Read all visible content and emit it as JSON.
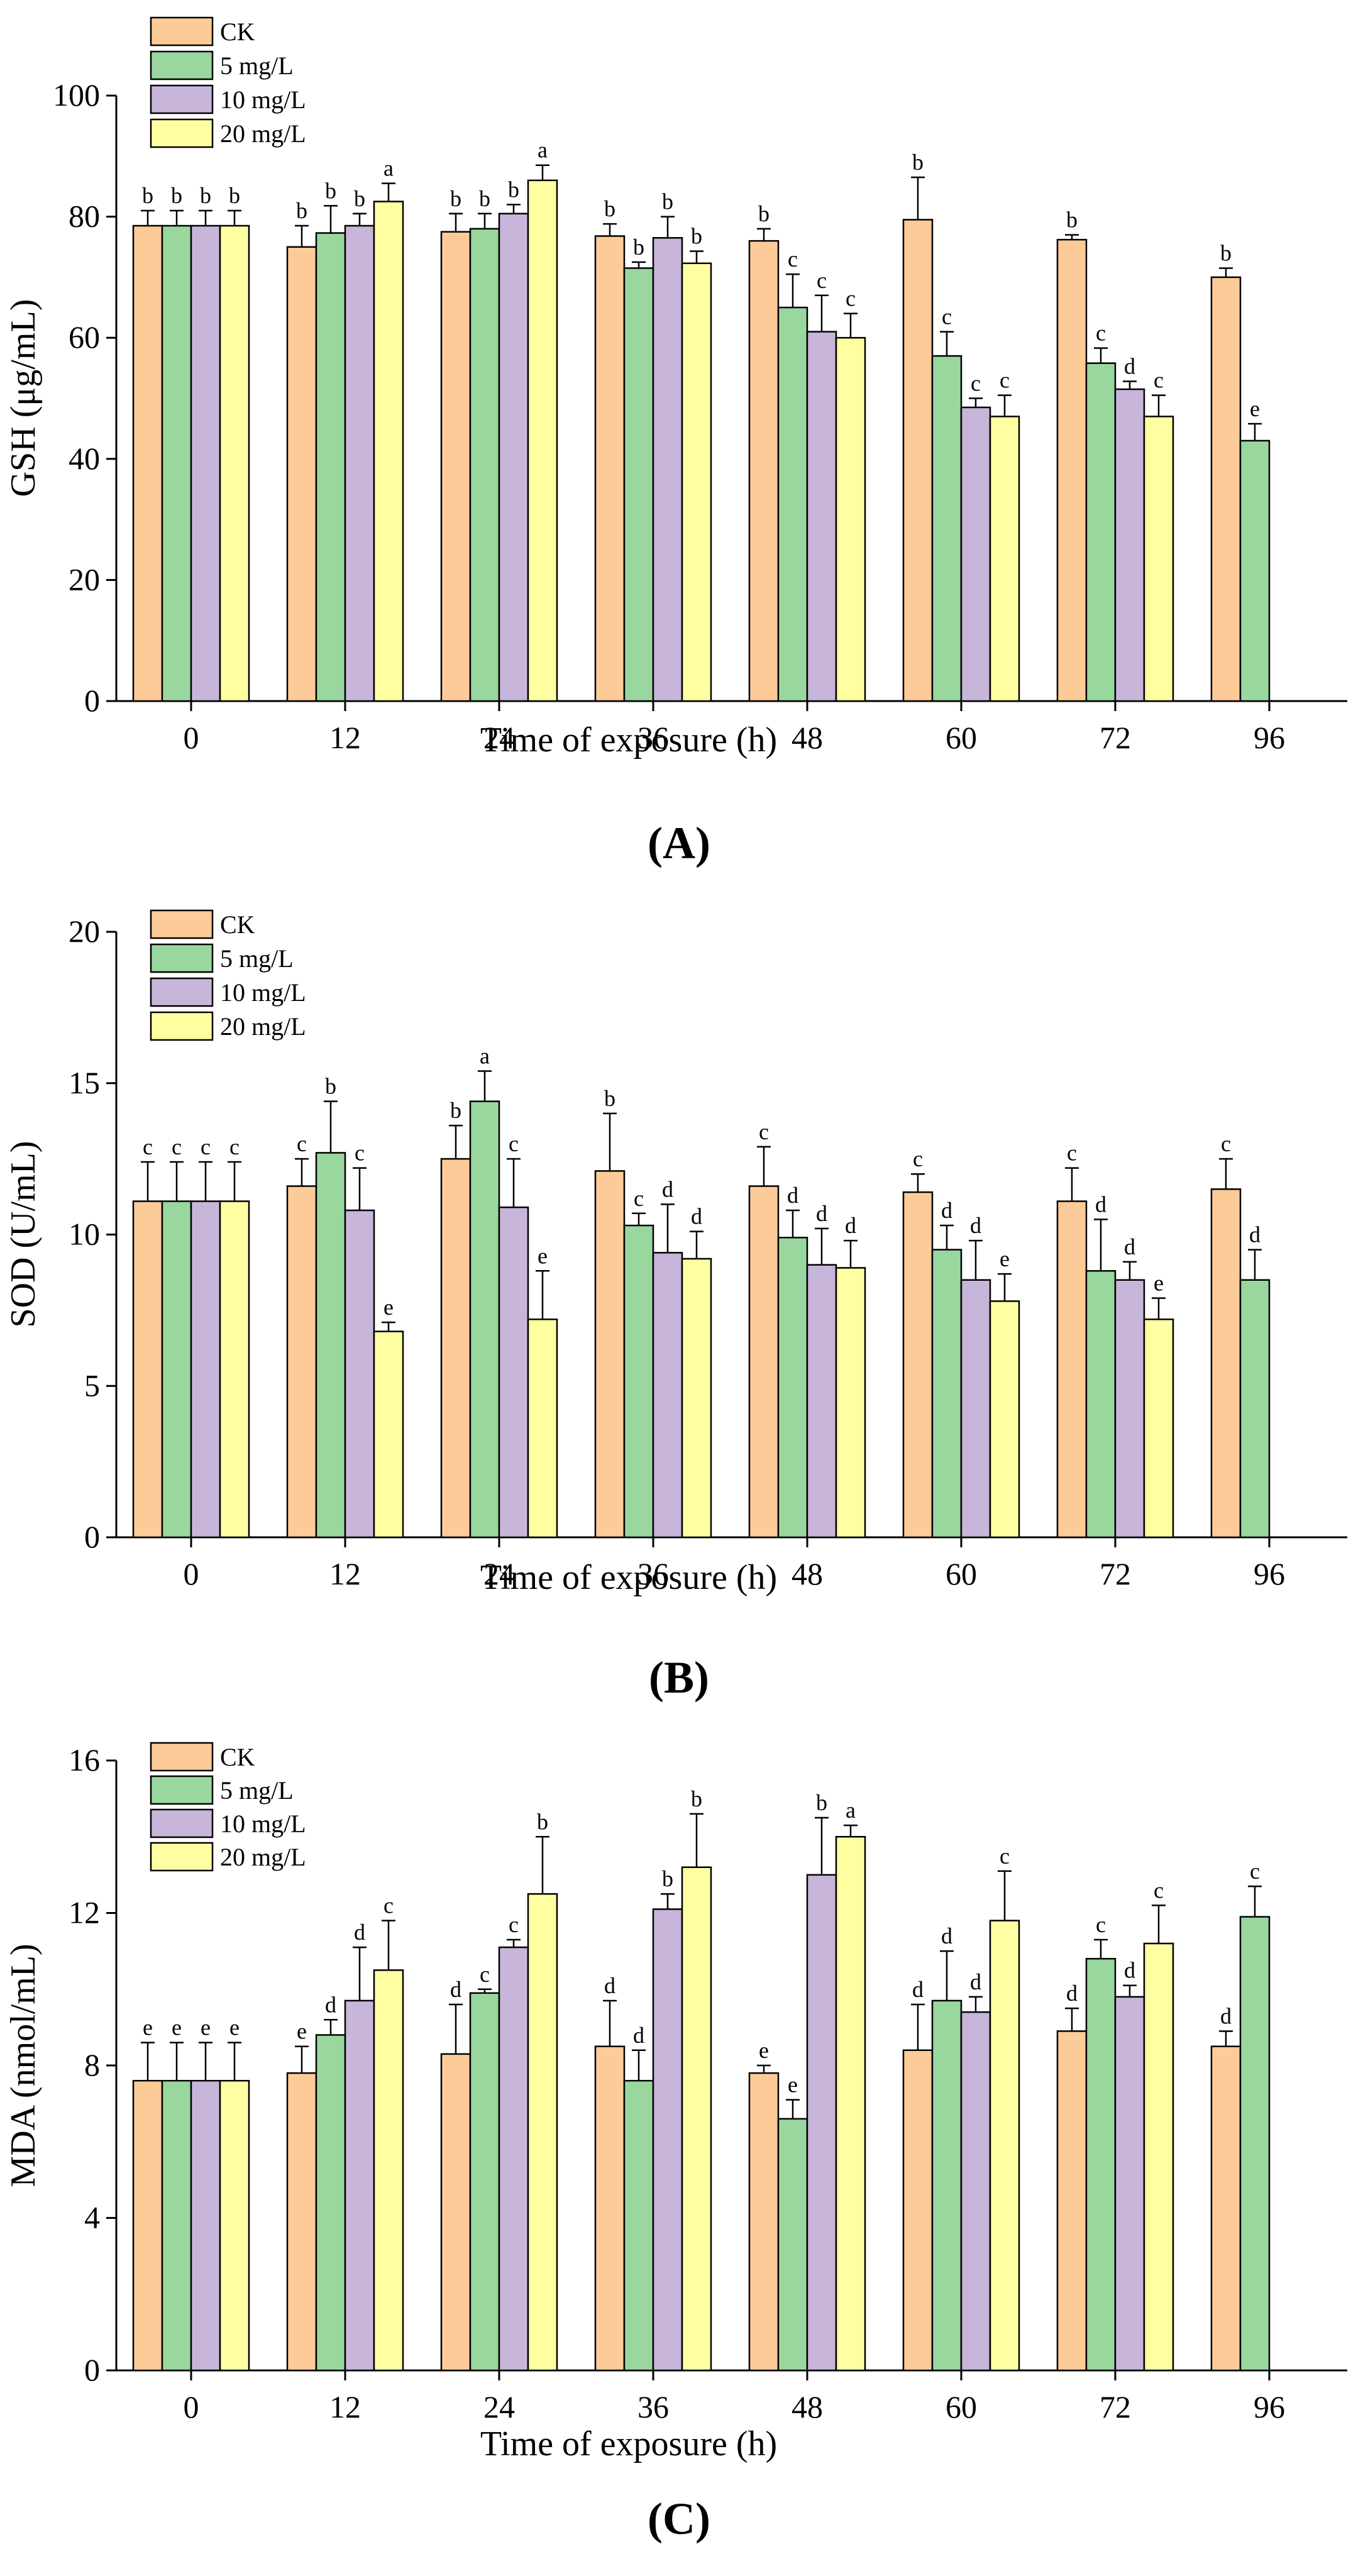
{
  "colors": {
    "CK": "#FDCB98",
    "5 mg/L": "#99D79F",
    "10 mg/L": "#C8B5DA",
    "20 mg/L": "#FFFEA1",
    "axis": "#000000"
  },
  "chart_data": [
    {
      "type": "bar",
      "panel_label": "(A)",
      "xlabel": "Time of exposure (h)",
      "ylabel": "GSH (μg/mL)",
      "ylim": [
        0,
        100
      ],
      "yticks": [
        0,
        20,
        40,
        60,
        80,
        100
      ],
      "categories": [
        "0",
        "12",
        "24",
        "36",
        "48",
        "60",
        "72",
        "96"
      ],
      "legend": {
        "entries": [
          "CK",
          "5 mg/L",
          "10 mg/L",
          "20 mg/L"
        ],
        "position": "top-left"
      },
      "grid": false,
      "series": [
        {
          "name": "CK",
          "values": [
            78.5,
            75.0,
            77.5,
            76.8,
            76.0,
            79.5,
            76.2,
            70.0
          ],
          "errors": [
            2.5,
            3.5,
            3.0,
            2.0,
            2.0,
            7.0,
            0.8,
            1.5
          ],
          "letters": [
            "b",
            "b",
            "b",
            "b",
            "b",
            "b",
            "b",
            "b"
          ]
        },
        {
          "name": "5 mg/L",
          "values": [
            78.5,
            77.3,
            78.0,
            71.5,
            65.0,
            57.0,
            55.8,
            43.0
          ],
          "errors": [
            2.5,
            4.5,
            2.5,
            1.0,
            5.5,
            4.0,
            2.5,
            2.8
          ],
          "letters": [
            "b",
            "b",
            "b",
            "b",
            "c",
            "c",
            "c",
            "e"
          ]
        },
        {
          "name": "10 mg/L",
          "values": [
            78.5,
            78.5,
            80.5,
            76.5,
            61.0,
            48.5,
            51.5,
            0
          ],
          "errors": [
            2.5,
            2.0,
            1.5,
            3.5,
            6.0,
            1.5,
            1.3,
            0
          ],
          "letters": [
            "b",
            "b",
            "b",
            "b",
            "c",
            "c",
            "d",
            ""
          ]
        },
        {
          "name": "20 mg/L",
          "values": [
            78.5,
            82.5,
            86.0,
            72.3,
            60.0,
            47.0,
            47.0,
            0
          ],
          "errors": [
            2.5,
            3.0,
            2.5,
            2.0,
            4.0,
            3.5,
            3.5,
            0
          ],
          "letters": [
            "b",
            "a",
            "a",
            "b",
            "c",
            "c",
            "c",
            ""
          ]
        }
      ]
    },
    {
      "type": "bar",
      "panel_label": "(B)",
      "xlabel": "Time of exposure (h)",
      "ylabel": "SOD (U/mL)",
      "ylim": [
        0,
        20
      ],
      "yticks": [
        0,
        5,
        10,
        15,
        20
      ],
      "categories": [
        "0",
        "12",
        "24",
        "36",
        "48",
        "60",
        "72",
        "96"
      ],
      "legend": {
        "entries": [
          "CK",
          "5 mg/L",
          "10 mg/L",
          "20 mg/L"
        ],
        "position": "top-left"
      },
      "grid": false,
      "series": [
        {
          "name": "CK",
          "values": [
            11.1,
            11.6,
            12.5,
            12.1,
            11.6,
            11.4,
            11.1,
            11.5
          ],
          "errors": [
            1.3,
            0.9,
            1.1,
            1.9,
            1.3,
            0.6,
            1.1,
            1.0
          ],
          "letters": [
            "c",
            "c",
            "b",
            "b",
            "c",
            "c",
            "c",
            "c"
          ]
        },
        {
          "name": "5 mg/L",
          "values": [
            11.1,
            12.7,
            14.4,
            10.3,
            9.9,
            9.5,
            8.8,
            8.5
          ],
          "errors": [
            1.3,
            1.7,
            1.0,
            0.4,
            0.9,
            0.8,
            1.7,
            1.0
          ],
          "letters": [
            "c",
            "b",
            "a",
            "c",
            "d",
            "d",
            "d",
            "d"
          ]
        },
        {
          "name": "10 mg/L",
          "values": [
            11.1,
            10.8,
            10.9,
            9.4,
            9.0,
            8.5,
            8.5,
            0
          ],
          "errors": [
            1.3,
            1.4,
            1.6,
            1.6,
            1.2,
            1.3,
            0.6,
            0
          ],
          "letters": [
            "c",
            "c",
            "c",
            "d",
            "d",
            "d",
            "d",
            ""
          ]
        },
        {
          "name": "20 mg/L",
          "values": [
            11.1,
            6.8,
            7.2,
            9.2,
            8.9,
            7.8,
            7.2,
            0
          ],
          "errors": [
            1.3,
            0.3,
            1.6,
            0.9,
            0.9,
            0.9,
            0.7,
            0
          ],
          "letters": [
            "c",
            "e",
            "e",
            "d",
            "d",
            "e",
            "e",
            ""
          ]
        }
      ]
    },
    {
      "type": "bar",
      "panel_label": "(C)",
      "xlabel": "Time of exposure (h)",
      "ylabel": "MDA (nmol/mL)",
      "ylim": [
        0,
        16
      ],
      "yticks": [
        0,
        4,
        8,
        12,
        16
      ],
      "categories": [
        "0",
        "12",
        "24",
        "36",
        "48",
        "60",
        "72",
        "96"
      ],
      "legend": {
        "entries": [
          "CK",
          "5 mg/L",
          "10 mg/L",
          "20 mg/L"
        ],
        "position": "top-left"
      },
      "grid": false,
      "series": [
        {
          "name": "CK",
          "values": [
            7.6,
            7.8,
            8.3,
            8.5,
            7.8,
            8.4,
            8.9,
            8.5
          ],
          "errors": [
            1.0,
            0.7,
            1.3,
            1.2,
            0.2,
            1.2,
            0.6,
            0.4
          ],
          "letters": [
            "e",
            "e",
            "d",
            "d",
            "e",
            "d",
            "d",
            "d"
          ]
        },
        {
          "name": "5 mg/L",
          "values": [
            7.6,
            8.8,
            9.9,
            7.6,
            6.6,
            9.7,
            10.8,
            11.9
          ],
          "errors": [
            1.0,
            0.4,
            0.1,
            0.8,
            0.5,
            1.3,
            0.5,
            0.8
          ],
          "letters": [
            "e",
            "d",
            "c",
            "d",
            "e",
            "d",
            "c",
            "c"
          ]
        },
        {
          "name": "10 mg/L",
          "values": [
            7.6,
            9.7,
            11.1,
            12.1,
            13.0,
            9.4,
            9.8,
            0
          ],
          "errors": [
            1.0,
            1.4,
            0.2,
            0.4,
            1.5,
            0.4,
            0.3,
            0
          ],
          "letters": [
            "e",
            "d",
            "c",
            "b",
            "b",
            "d",
            "d",
            ""
          ]
        },
        {
          "name": "20 mg/L",
          "values": [
            7.6,
            10.5,
            12.5,
            13.2,
            14.0,
            11.8,
            11.2,
            0
          ],
          "errors": [
            1.0,
            1.3,
            1.5,
            1.4,
            0.3,
            1.3,
            1.0,
            0
          ],
          "letters": [
            "e",
            "c",
            "b",
            "b",
            "a",
            "c",
            "c",
            ""
          ]
        }
      ]
    }
  ]
}
